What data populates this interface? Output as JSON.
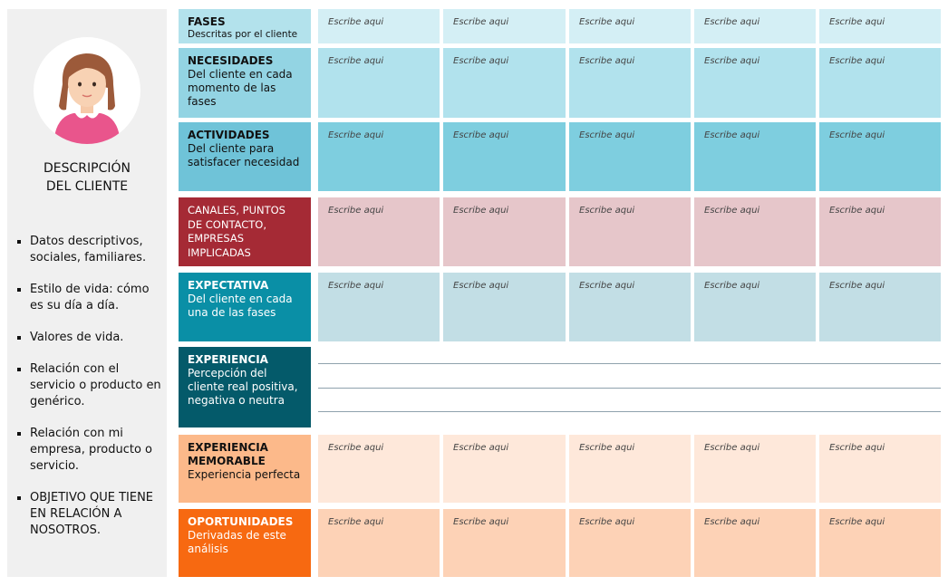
{
  "panel": {
    "title_line1": "DESCRIPCIÓN",
    "title_line2": "DEL CLIENTE",
    "bullets": [
      "Datos descriptivos, sociales, familiares.",
      "Estilo de vida: cómo es su día a día.",
      "Valores de vida.",
      "Relación con el servicio o producto en genérico.",
      "Relación con mi empresa, producto o servicio.",
      "OBJETIVO QUE TIENE EN RELACIÓN A NOSOTROS."
    ]
  },
  "placeholder": "Escribe aqui",
  "rows": [
    {
      "title": "FASES",
      "subtitle": "Descritas por el cliente",
      "label_color": "#b3e2ec",
      "text_color": "#111111",
      "cell_color": "#d4eff5"
    },
    {
      "title": "NECESIDADES",
      "subtitle": "Del cliente en cada momento de las fases",
      "label_color": "#93d4e3",
      "text_color": "#111111",
      "cell_color": "#b1e2ed"
    },
    {
      "title": "ACTIVIDADES",
      "subtitle": "Del cliente para satisfacer necesidad",
      "label_color": "#6fc3d8",
      "text_color": "#111111",
      "cell_color": "#7ecedf"
    },
    {
      "title": "CANALES, PUNTOS DE CONTACTO, EMPRESAS IMPLICADAS",
      "subtitle": "",
      "label_color": "#a52a35",
      "text_color": "#ffffff",
      "cell_color": "#e6c6ca"
    },
    {
      "title": "EXPECTATIVA",
      "subtitle": "Del cliente en cada una de las fases",
      "label_color": "#0a8fa6",
      "text_color": "#ffffff",
      "cell_color": "#c2dee5"
    },
    {
      "title": "EXPERIENCIA",
      "subtitle": "Percepción del cliente real positiva, negativa o neutra",
      "label_color": "#045a6a",
      "text_color": "#ffffff",
      "cell_color": ""
    },
    {
      "title": "EXPERIENCIA MEMORABLE",
      "subtitle": "Experiencia perfecta",
      "label_color": "#fcb98a",
      "text_color": "#111111",
      "cell_color": "#fee8da"
    },
    {
      "title": "OPORTUNIDADES",
      "subtitle": "Derivadas de este análisis",
      "label_color": "#f76911",
      "text_color": "#ffffff",
      "cell_color": "#fdd2b6"
    }
  ]
}
